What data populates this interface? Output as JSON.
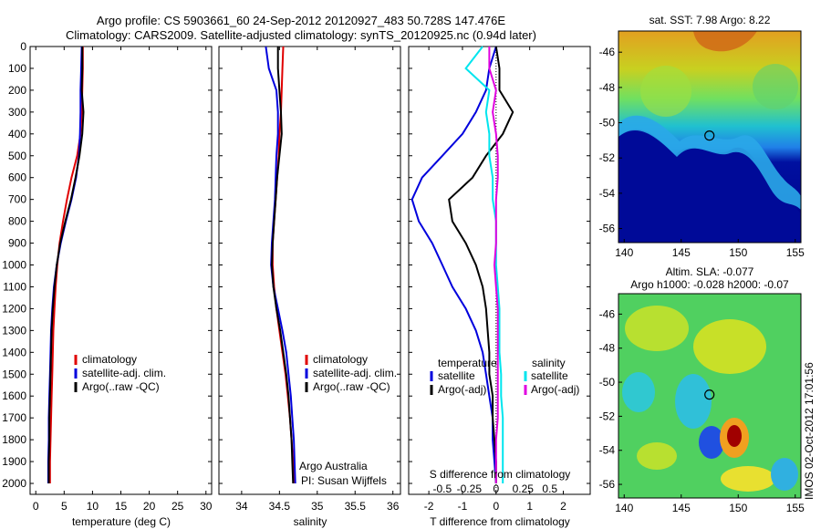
{
  "title_line1": "Argo profile: CS 5903661_60 24-Sep-2012 20120927_483 50.728S 147.476E",
  "title_line2": "Climatology: CARS2009. Satellite-adjusted climatology: synTS_20120925.nc (0.94d later)",
  "side_stamp": "IMOS 02-Oct-2012 17:01:56",
  "colors": {
    "climatology": "#e00000",
    "satellite": "#0000dd",
    "argo": "#000000",
    "cyan": "#00e5ee",
    "magenta": "#e000e0"
  },
  "chart_data": [
    {
      "type": "line",
      "xlabel": "temperature (deg C)",
      "xlim": [
        -1,
        31
      ],
      "ylim": [
        2050,
        0
      ],
      "yticks": [
        0,
        100,
        200,
        300,
        400,
        500,
        600,
        700,
        800,
        900,
        1000,
        1100,
        1200,
        1300,
        1400,
        1500,
        1600,
        1700,
        1800,
        1900,
        2000
      ],
      "xticks": [
        0,
        5,
        10,
        15,
        20,
        25,
        30
      ],
      "legend": [
        "climatology",
        "satellite-adj. clim.",
        "Argo(..raw -QC)"
      ],
      "series": [
        {
          "name": "climatology",
          "color": "#e00000",
          "x": [
            8.3,
            8.3,
            8.2,
            8.1,
            7.9,
            7.3,
            6.3,
            5.5,
            4.8,
            4.2,
            3.8,
            3.5,
            3.3,
            3.1,
            3.0,
            2.9,
            2.8,
            2.7,
            2.6,
            2.5,
            2.5
          ],
          "y": [
            0,
            100,
            200,
            300,
            400,
            500,
            600,
            700,
            800,
            900,
            1000,
            1100,
            1200,
            1300,
            1400,
            1500,
            1600,
            1700,
            1800,
            1900,
            2000
          ]
        },
        {
          "name": "satellite-adj. clim.",
          "color": "#0000dd",
          "x": [
            8.1,
            8.0,
            7.9,
            7.9,
            7.8,
            7.6,
            7.1,
            6.3,
            5.3,
            4.4,
            3.7,
            3.2,
            2.9,
            2.7,
            2.6,
            2.5,
            2.4,
            2.3,
            2.3,
            2.2,
            2.2
          ],
          "y": [
            0,
            100,
            200,
            300,
            400,
            500,
            600,
            700,
            800,
            900,
            1000,
            1100,
            1200,
            1300,
            1400,
            1500,
            1600,
            1700,
            1800,
            1900,
            2000
          ]
        },
        {
          "name": "Argo(..raw -QC)",
          "color": "#000000",
          "x": [
            8.2,
            8.2,
            8.1,
            8.4,
            8.2,
            7.7,
            7.0,
            6.2,
            5.2,
            4.3,
            3.7,
            3.3,
            3.0,
            2.8,
            2.7,
            2.6,
            2.5,
            2.4,
            2.4,
            2.3,
            2.3
          ],
          "y": [
            0,
            100,
            200,
            300,
            400,
            500,
            600,
            700,
            800,
            900,
            1000,
            1100,
            1200,
            1300,
            1400,
            1500,
            1600,
            1700,
            1800,
            1900,
            2000
          ]
        }
      ]
    },
    {
      "type": "line",
      "xlabel": "salinity",
      "xlim": [
        33.7,
        36.1
      ],
      "ylim": [
        2050,
        0
      ],
      "xticks": [
        34,
        34.5,
        35,
        35.5,
        36
      ],
      "legend": [
        "climatology",
        "satellite-adj. clim.",
        "Argo(..raw -QC)"
      ],
      "annotation": [
        "Argo Australia",
        "PI: Susan Wijffels"
      ],
      "series": [
        {
          "name": "climatology",
          "color": "#e00000",
          "x": [
            34.55,
            34.54,
            34.53,
            34.52,
            34.5,
            34.49,
            34.47,
            34.45,
            34.43,
            34.41,
            34.41,
            34.43,
            34.46,
            34.5,
            34.54,
            34.58,
            34.61,
            34.64,
            34.66,
            34.68,
            34.69
          ],
          "y": [
            0,
            100,
            200,
            300,
            400,
            500,
            600,
            700,
            800,
            900,
            1000,
            1100,
            1200,
            1300,
            1400,
            1500,
            1600,
            1700,
            1800,
            1900,
            2000
          ]
        },
        {
          "name": "satellite-adj. clim.",
          "color": "#0000dd",
          "x": [
            34.32,
            34.36,
            34.46,
            34.48,
            34.48,
            34.46,
            34.45,
            34.44,
            34.42,
            34.4,
            34.39,
            34.42,
            34.48,
            34.54,
            34.59,
            34.62,
            34.65,
            34.67,
            34.69,
            34.7,
            34.71
          ],
          "y": [
            0,
            100,
            200,
            300,
            400,
            500,
            600,
            700,
            800,
            900,
            1000,
            1100,
            1200,
            1300,
            1400,
            1500,
            1600,
            1700,
            1800,
            1900,
            2000
          ]
        },
        {
          "name": "Argo(..raw -QC)",
          "color": "#000000",
          "x": [
            34.48,
            34.48,
            34.5,
            34.52,
            34.53,
            34.5,
            34.47,
            34.45,
            34.43,
            34.41,
            34.4,
            34.42,
            34.46,
            34.51,
            34.55,
            34.59,
            34.62,
            34.64,
            34.66,
            34.67,
            34.68
          ],
          "y": [
            0,
            100,
            200,
            300,
            400,
            500,
            600,
            700,
            800,
            900,
            1000,
            1100,
            1200,
            1300,
            1400,
            1500,
            1600,
            1700,
            1800,
            1900,
            2000
          ]
        }
      ]
    },
    {
      "type": "line",
      "xlabel": "T difference from climatology",
      "xlabel2": "S difference from climatology",
      "xlim": [
        -2.6,
        2.8
      ],
      "ylim": [
        2050,
        0
      ],
      "xticks": [
        -2,
        -1,
        0,
        1,
        2
      ],
      "xticks2": [
        {
          "at": -1.6,
          "label": "-0.5"
        },
        {
          "at": -0.8,
          "label": "-0.25"
        },
        {
          "at": 0,
          "label": "0"
        },
        {
          "at": 0.8,
          "label": "0.25"
        },
        {
          "at": 1.6,
          "label": "0.5"
        }
      ],
      "legend_left": {
        "heading": "temperature",
        "items": [
          "satellite",
          "Argo(-adj)"
        ]
      },
      "legend_right": {
        "heading": "salinity",
        "items": [
          "satellite",
          "Argo(-adj)"
        ]
      },
      "series": [
        {
          "name": "temperature satellite",
          "color": "#0000dd",
          "x": [
            0.0,
            -0.2,
            -0.3,
            -0.6,
            -1.0,
            -1.6,
            -2.2,
            -2.5,
            -2.3,
            -1.9,
            -1.6,
            -1.3,
            -0.9,
            -0.6,
            -0.4,
            -0.3,
            -0.2,
            -0.1,
            -0.1,
            -0.05,
            0.0
          ],
          "y": [
            0,
            100,
            200,
            300,
            400,
            500,
            600,
            700,
            800,
            900,
            1000,
            1100,
            1200,
            1300,
            1400,
            1500,
            1600,
            1700,
            1800,
            1900,
            2000
          ]
        },
        {
          "name": "temperature Argo(-adj)",
          "color": "#000000",
          "x": [
            0.0,
            0.1,
            0.1,
            0.5,
            0.2,
            -0.3,
            -0.7,
            -1.4,
            -1.3,
            -0.9,
            -0.6,
            -0.4,
            -0.3,
            -0.25,
            -0.2,
            -0.2,
            -0.1,
            -0.1,
            -0.05,
            0.0,
            0.0
          ],
          "y": [
            0,
            100,
            200,
            300,
            400,
            500,
            600,
            700,
            800,
            900,
            1000,
            1100,
            1200,
            1300,
            1400,
            1500,
            1600,
            1700,
            1800,
            1900,
            2000
          ]
        },
        {
          "name": "salinity satellite",
          "color": "#00e5ee",
          "x": [
            -0.4,
            -0.9,
            -0.2,
            -0.3,
            -0.2,
            -0.2,
            -0.1,
            -0.1,
            0.0,
            0.0,
            0.0,
            0.05,
            0.1,
            0.1,
            0.1,
            0.15,
            0.15,
            0.2,
            0.2,
            0.2,
            0.2
          ],
          "y": [
            0,
            100,
            200,
            300,
            400,
            500,
            600,
            700,
            800,
            900,
            1000,
            1100,
            1200,
            1300,
            1400,
            1500,
            1600,
            1700,
            1800,
            1900,
            2000
          ]
        },
        {
          "name": "salinity Argo(-adj)",
          "color": "#e000e0",
          "x": [
            -0.2,
            -0.2,
            0.0,
            -0.1,
            0.0,
            0.05,
            0.05,
            0.0,
            0.0,
            0.0,
            -0.05,
            0.0,
            0.05,
            0.05,
            0.05,
            0.05,
            0.05,
            0.05,
            0.0,
            0.0,
            0.0
          ],
          "y": [
            0,
            100,
            200,
            300,
            400,
            500,
            600,
            700,
            800,
            900,
            1000,
            1100,
            1200,
            1300,
            1400,
            1500,
            1600,
            1700,
            1800,
            1900,
            2000
          ]
        }
      ]
    },
    {
      "type": "heatmap",
      "title": "sat. SST: 7.98 Argo: 8.22",
      "xlim": [
        139.5,
        155.5
      ],
      "ylim": [
        -56.8,
        -44.8
      ],
      "xticks": [
        140,
        145,
        150,
        155
      ],
      "yticks": [
        -46,
        -48,
        -50,
        -52,
        -54,
        -56
      ],
      "marker": {
        "lon": 147.476,
        "lat": -50.728
      }
    },
    {
      "type": "heatmap",
      "title": "Altim. SLA: -0.077",
      "subtitle": "Argo h1000: -0.028 h2000: -0.07",
      "xlim": [
        139.5,
        155.5
      ],
      "ylim": [
        -56.8,
        -44.8
      ],
      "xticks": [
        140,
        145,
        150,
        155
      ],
      "yticks": [
        -46,
        -48,
        -50,
        -52,
        -54,
        -56
      ],
      "marker": {
        "lon": 147.476,
        "lat": -50.728
      }
    }
  ]
}
